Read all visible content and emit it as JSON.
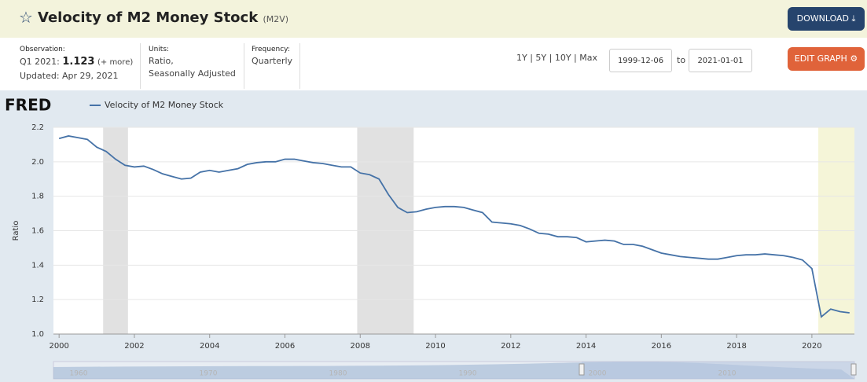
{
  "header": {
    "title": "Velocity of M2 Money Stock",
    "series_id": "(M2V)",
    "download": "DOWNLOAD",
    "edit_graph": "EDIT GRAPH"
  },
  "info": {
    "observation_label": "Observation:",
    "observation_period": "Q1 2021:",
    "observation_value": "1.123",
    "more": "(+ more)",
    "updated": "Updated: Apr 29, 2021",
    "units_label": "Units:",
    "units": [
      "Ratio,",
      "Seasonally Adjusted"
    ],
    "frequency_label": "Frequency:",
    "frequency": "Quarterly"
  },
  "range": {
    "links": [
      "1Y",
      "5Y",
      "10Y",
      "Max"
    ],
    "start": "1999-12-06",
    "to": "to",
    "end": "2021-01-01"
  },
  "logo": "FRED",
  "chart_data": {
    "type": "line",
    "y_label": "Ratio",
    "x": [
      2000,
      2000.25,
      2000.5,
      2000.75,
      2001,
      2001.25,
      2001.5,
      2001.75,
      2002,
      2002.25,
      2002.5,
      2002.75,
      2003,
      2003.25,
      2003.5,
      2003.75,
      2004,
      2004.25,
      2004.5,
      2004.75,
      2005,
      2005.25,
      2005.5,
      2005.75,
      2006,
      2006.25,
      2006.5,
      2006.75,
      2007,
      2007.25,
      2007.5,
      2007.75,
      2008,
      2008.25,
      2008.5,
      2008.75,
      2009,
      2009.25,
      2009.5,
      2009.75,
      2010,
      2010.25,
      2010.5,
      2010.75,
      2011,
      2011.25,
      2011.5,
      2011.75,
      2012,
      2012.25,
      2012.5,
      2012.75,
      2013,
      2013.25,
      2013.5,
      2013.75,
      2014,
      2014.25,
      2014.5,
      2014.75,
      2015,
      2015.25,
      2015.5,
      2015.75,
      2016,
      2016.25,
      2016.5,
      2016.75,
      2017,
      2017.25,
      2017.5,
      2017.75,
      2018,
      2018.25,
      2018.5,
      2018.75,
      2019,
      2019.25,
      2019.5,
      2019.75,
      2020,
      2020.25,
      2020.5,
      2020.75,
      2021
    ],
    "series": [
      {
        "name": "Velocity of M2 Money Stock",
        "color": "#4572a7",
        "values": [
          2.135,
          2.15,
          2.14,
          2.13,
          2.085,
          2.06,
          2.015,
          1.98,
          1.97,
          1.975,
          1.955,
          1.93,
          1.915,
          1.9,
          1.905,
          1.94,
          1.95,
          1.94,
          1.95,
          1.96,
          1.985,
          1.995,
          2.0,
          2.0,
          2.015,
          2.015,
          2.005,
          1.995,
          1.99,
          1.98,
          1.97,
          1.97,
          1.935,
          1.925,
          1.9,
          1.81,
          1.735,
          1.705,
          1.71,
          1.725,
          1.735,
          1.74,
          1.74,
          1.735,
          1.72,
          1.705,
          1.65,
          1.645,
          1.64,
          1.63,
          1.61,
          1.585,
          1.58,
          1.565,
          1.565,
          1.56,
          1.535,
          1.54,
          1.545,
          1.54,
          1.52,
          1.52,
          1.51,
          1.49,
          1.47,
          1.46,
          1.45,
          1.445,
          1.44,
          1.435,
          1.435,
          1.445,
          1.455,
          1.46,
          1.46,
          1.465,
          1.46,
          1.455,
          1.445,
          1.43,
          1.38,
          1.1,
          1.145,
          1.13,
          1.123
        ]
      }
    ],
    "xlim": [
      1999.85,
      2021.13
    ],
    "xticks": [
      2000,
      2002,
      2004,
      2006,
      2008,
      2010,
      2012,
      2014,
      2016,
      2018,
      2020
    ],
    "ylim": [
      1,
      2.2
    ],
    "yticks": [
      {
        "value": 1,
        "label": "1.0"
      },
      1.2,
      1.4,
      1.6,
      1.8,
      {
        "value": 2,
        "label": "2.0"
      },
      2.2
    ],
    "grid": true,
    "recessions": [
      {
        "start": 2001.17,
        "end": 2001.83
      },
      {
        "start": 2007.92,
        "end": 2009.42
      }
    ],
    "recession_color": "#e1e1e1",
    "highlight": {
      "start": 2020.17,
      "end": 2021.13,
      "color": "#f5f5d8"
    }
  },
  "navigator": {
    "labels": [
      "1960",
      "1970",
      "1980",
      "1990",
      "2000",
      "2010"
    ]
  }
}
